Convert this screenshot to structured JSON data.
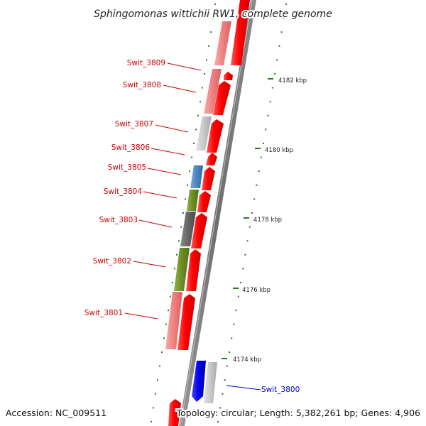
{
  "title": "Sphingomonas wittichii RW1, complete genome",
  "accession": "Accession: NC_009511",
  "topology": "Topology: circular; Length: 5,382,261 bp; Genes: 4,906",
  "colors": {
    "backbone": "#7a7a7a",
    "forward_gene": "#ff0000",
    "ticks": "#1e7a1e",
    "label_red": "#cc0000",
    "label_blue": "#0000cc",
    "pink": "#f08080",
    "gray_light": "#c8c8c8",
    "gray_dark": "#666666",
    "steel_blue": "#4a86c0",
    "olive": "#6b8e23",
    "blue": "#0000ee"
  },
  "kbp_ticks": [
    {
      "label": "4174 kbp",
      "kbp": 4174
    },
    {
      "label": "4176 kbp",
      "kbp": 4176
    },
    {
      "label": "4178 kbp",
      "kbp": 4178
    },
    {
      "label": "4180 kbp",
      "kbp": 4180
    },
    {
      "label": "4182 kbp",
      "kbp": 4182
    }
  ],
  "labeled_genes": [
    {
      "name": "Swit_3809",
      "color": "red"
    },
    {
      "name": "Swit_3808",
      "color": "red"
    },
    {
      "name": "Swit_3807",
      "color": "red"
    },
    {
      "name": "Swit_3806",
      "color": "red"
    },
    {
      "name": "Swit_3805",
      "color": "red"
    },
    {
      "name": "Swit_3804",
      "color": "red"
    },
    {
      "name": "Swit_3803",
      "color": "red"
    },
    {
      "name": "Swit_3802",
      "color": "red"
    },
    {
      "name": "Swit_3801",
      "color": "red"
    },
    {
      "name": "Swit_3800",
      "color": "blue"
    }
  ]
}
